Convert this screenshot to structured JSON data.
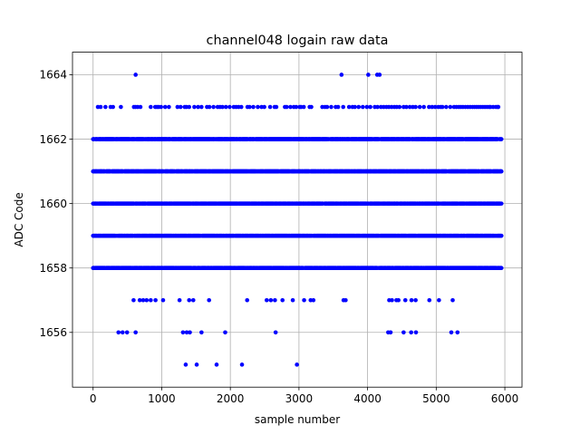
{
  "chart_data": {
    "type": "scatter",
    "title": "channel048 logain raw data",
    "xlabel": "sample number",
    "ylabel": "ADC Code",
    "xlim": [
      -300,
      6250
    ],
    "ylim": [
      1654.3,
      1664.7
    ],
    "xticks": [
      0,
      1000,
      2000,
      3000,
      4000,
      5000,
      6000
    ],
    "yticks": [
      1656,
      1658,
      1660,
      1662,
      1664
    ],
    "grid": true,
    "marker_color": "#0000ff",
    "dense_levels": [
      1658,
      1659,
      1660,
      1661,
      1662
    ],
    "dense_x_range": [
      0,
      5950
    ],
    "dense_step": 7,
    "sparse_points": {
      "1664": [
        620,
        3620,
        4010,
        4140,
        4175
      ],
      "1663": [
        70,
        110,
        180,
        255,
        290,
        405,
        595,
        620,
        650,
        690,
        840,
        905,
        930,
        955,
        990,
        1050,
        1105,
        1230,
        1275,
        1335,
        1360,
        1400,
        1475,
        1530,
        1580,
        1660,
        1695,
        1755,
        1815,
        1850,
        1885,
        1935,
        1990,
        2050,
        2085,
        2120,
        2160,
        2250,
        2280,
        2335,
        2400,
        2455,
        2495,
        2580,
        2645,
        2670,
        2795,
        2820,
        2875,
        2925,
        2960,
        3010,
        3030,
        3070,
        3155,
        3180,
        3340,
        3380,
        3410,
        3470,
        3535,
        3570,
        3645,
        3730,
        3780,
        3815,
        3870,
        3930,
        3990,
        4040,
        4105,
        4145,
        4195,
        4235,
        4275,
        4310,
        4350,
        4390,
        4425,
        4465,
        4525,
        4565,
        4615,
        4660,
        4700,
        4760,
        4820,
        4895,
        4940,
        4985,
        5030,
        5065,
        5090,
        5145,
        5205,
        5260,
        5295,
        5330,
        5360,
        5390,
        5425,
        5460,
        5495,
        5530,
        5560,
        5590,
        5620,
        5650,
        5680,
        5710,
        5740,
        5770,
        5790,
        5830,
        5870,
        5895,
        5905
      ],
      "1657": [
        590,
        680,
        730,
        780,
        840,
        910,
        1020,
        1260,
        1400,
        1460,
        1690,
        2245,
        2530,
        2590,
        2650,
        2760,
        2910,
        3075,
        3170,
        3210,
        3650,
        3680,
        4315,
        4355,
        4420,
        4450,
        4550,
        4640,
        4700,
        4900,
        5040,
        5240
      ],
      "1656": [
        370,
        430,
        495,
        620,
        1310,
        1365,
        1410,
        1580,
        1925,
        2660,
        4300,
        4335,
        4525,
        4635,
        4705,
        5220,
        5310
      ],
      "1655": [
        1350,
        1510,
        1800,
        2170,
        2970
      ]
    }
  }
}
